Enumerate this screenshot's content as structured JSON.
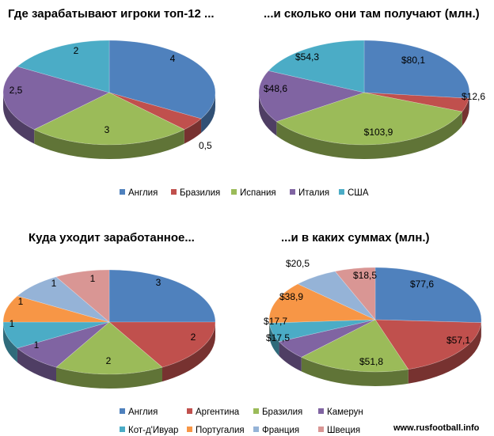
{
  "chart_data": [
    {
      "type": "pie",
      "title": "Где зарабатывают  игроки топ-12 ...",
      "categories": [
        "Англия",
        "Бразилия",
        "Испания",
        "Италия",
        "США"
      ],
      "values": [
        4,
        0.5,
        3,
        2.5,
        2
      ],
      "labels": [
        "4",
        "0,5",
        "3",
        "2,5",
        "2"
      ],
      "colors": [
        "#4F81BD",
        "#C0504D",
        "#9BBB59",
        "#8064A2",
        "#4BACC6"
      ],
      "legend_position": "bottom"
    },
    {
      "type": "pie",
      "title": "...и сколько они там получают (млн.)",
      "categories": [
        "Англия",
        "Бразилия",
        "Испания",
        "Италия",
        "США"
      ],
      "values": [
        80.1,
        12.6,
        103.9,
        48.6,
        54.3
      ],
      "labels": [
        "$80,1",
        "$12,6",
        "$103,9",
        "$48,6",
        "$54,3"
      ],
      "colors": [
        "#4F81BD",
        "#C0504D",
        "#9BBB59",
        "#8064A2",
        "#4BACC6"
      ],
      "legend_position": "bottom"
    },
    {
      "type": "pie",
      "title": "Куда уходит заработанное...",
      "categories": [
        "Англия",
        "Аргентина",
        "Бразилия",
        "Камерун",
        "Кот-д'Ивуар",
        "Португалия",
        "Франция",
        "Швеция"
      ],
      "values": [
        3,
        2,
        2,
        1,
        1,
        1,
        1,
        1
      ],
      "labels": [
        "3",
        "2",
        "2",
        "1",
        "1",
        "1",
        "1",
        "1"
      ],
      "colors": [
        "#4F81BD",
        "#C0504D",
        "#9BBB59",
        "#8064A2",
        "#4BACC6",
        "#F79646",
        "#95B3D7",
        "#D99694"
      ],
      "legend_position": "bottom"
    },
    {
      "type": "pie",
      "title": "...и в каких суммах (млн.)",
      "categories": [
        "Англия",
        "Аргентина",
        "Бразилия",
        "Камерун",
        "Кот-д'Ивуар",
        "Португалия",
        "Франция",
        "Швеция"
      ],
      "values": [
        77.6,
        57.1,
        51.8,
        17.5,
        17.7,
        38.9,
        20.5,
        18.5
      ],
      "labels": [
        "$77,6",
        "$57,1",
        "$51,8",
        "$17,5",
        "$17,7",
        "$38,9",
        "$20,5",
        "$18,5"
      ],
      "colors": [
        "#4F81BD",
        "#C0504D",
        "#9BBB59",
        "#8064A2",
        "#4BACC6",
        "#F79646",
        "#95B3D7",
        "#D99694"
      ],
      "legend_position": "bottom"
    }
  ],
  "legend_top": [
    "Англия",
    "Бразилия",
    "Испания",
    "Италия",
    "США"
  ],
  "legend_top_colors": [
    "#4F81BD",
    "#C0504D",
    "#9BBB59",
    "#8064A2",
    "#4BACC6"
  ],
  "legend_bottom": [
    "Англия",
    "Аргентина",
    "Бразилия",
    "Камерун",
    "Кот-д'Ивуар",
    "Португалия",
    "Франция",
    "Швеция"
  ],
  "legend_bottom_colors": [
    "#4F81BD",
    "#C0504D",
    "#9BBB59",
    "#8064A2",
    "#4BACC6",
    "#F79646",
    "#95B3D7",
    "#D99694"
  ],
  "credit": "www.rusfootball.info"
}
